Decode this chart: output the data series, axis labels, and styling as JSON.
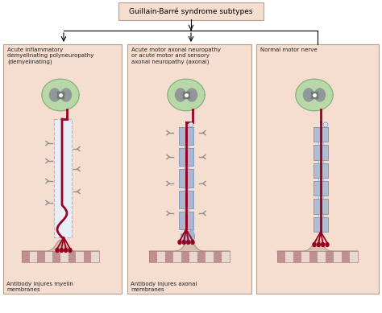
{
  "title": "Guillain-Barré syndrome subtypes",
  "panel_titles": [
    "Acute inflammatory\ndemyelinating polyneuropathy\n(demyelinating)",
    "Acute motor axonal neuropathy\nor acute motor and sensory\naxonal neuropathy (axonal)",
    "Normal motor nerve"
  ],
  "panel_captions": [
    "Antibody injures myelin\nmembranes",
    "Antibody injures axonal\nmembranes",
    ""
  ],
  "bg_color": "#f5ddd0",
  "panel_border_color": "#b8a090",
  "title_box_bg": "#f5ddd0",
  "title_box_border": "#b8a090",
  "brain_outer_green": "#b8d8a8",
  "brain_inner_gray": "#909898",
  "axon_red": "#990022",
  "myelin_blue": "#a8b8d0",
  "myelin_edge": "#8898b8",
  "antibody_color": "#888888",
  "muscle_dark": "#c09090",
  "muscle_light": "#e8d8d0",
  "node_fill": "#d8e0ec",
  "white": "#ffffff"
}
